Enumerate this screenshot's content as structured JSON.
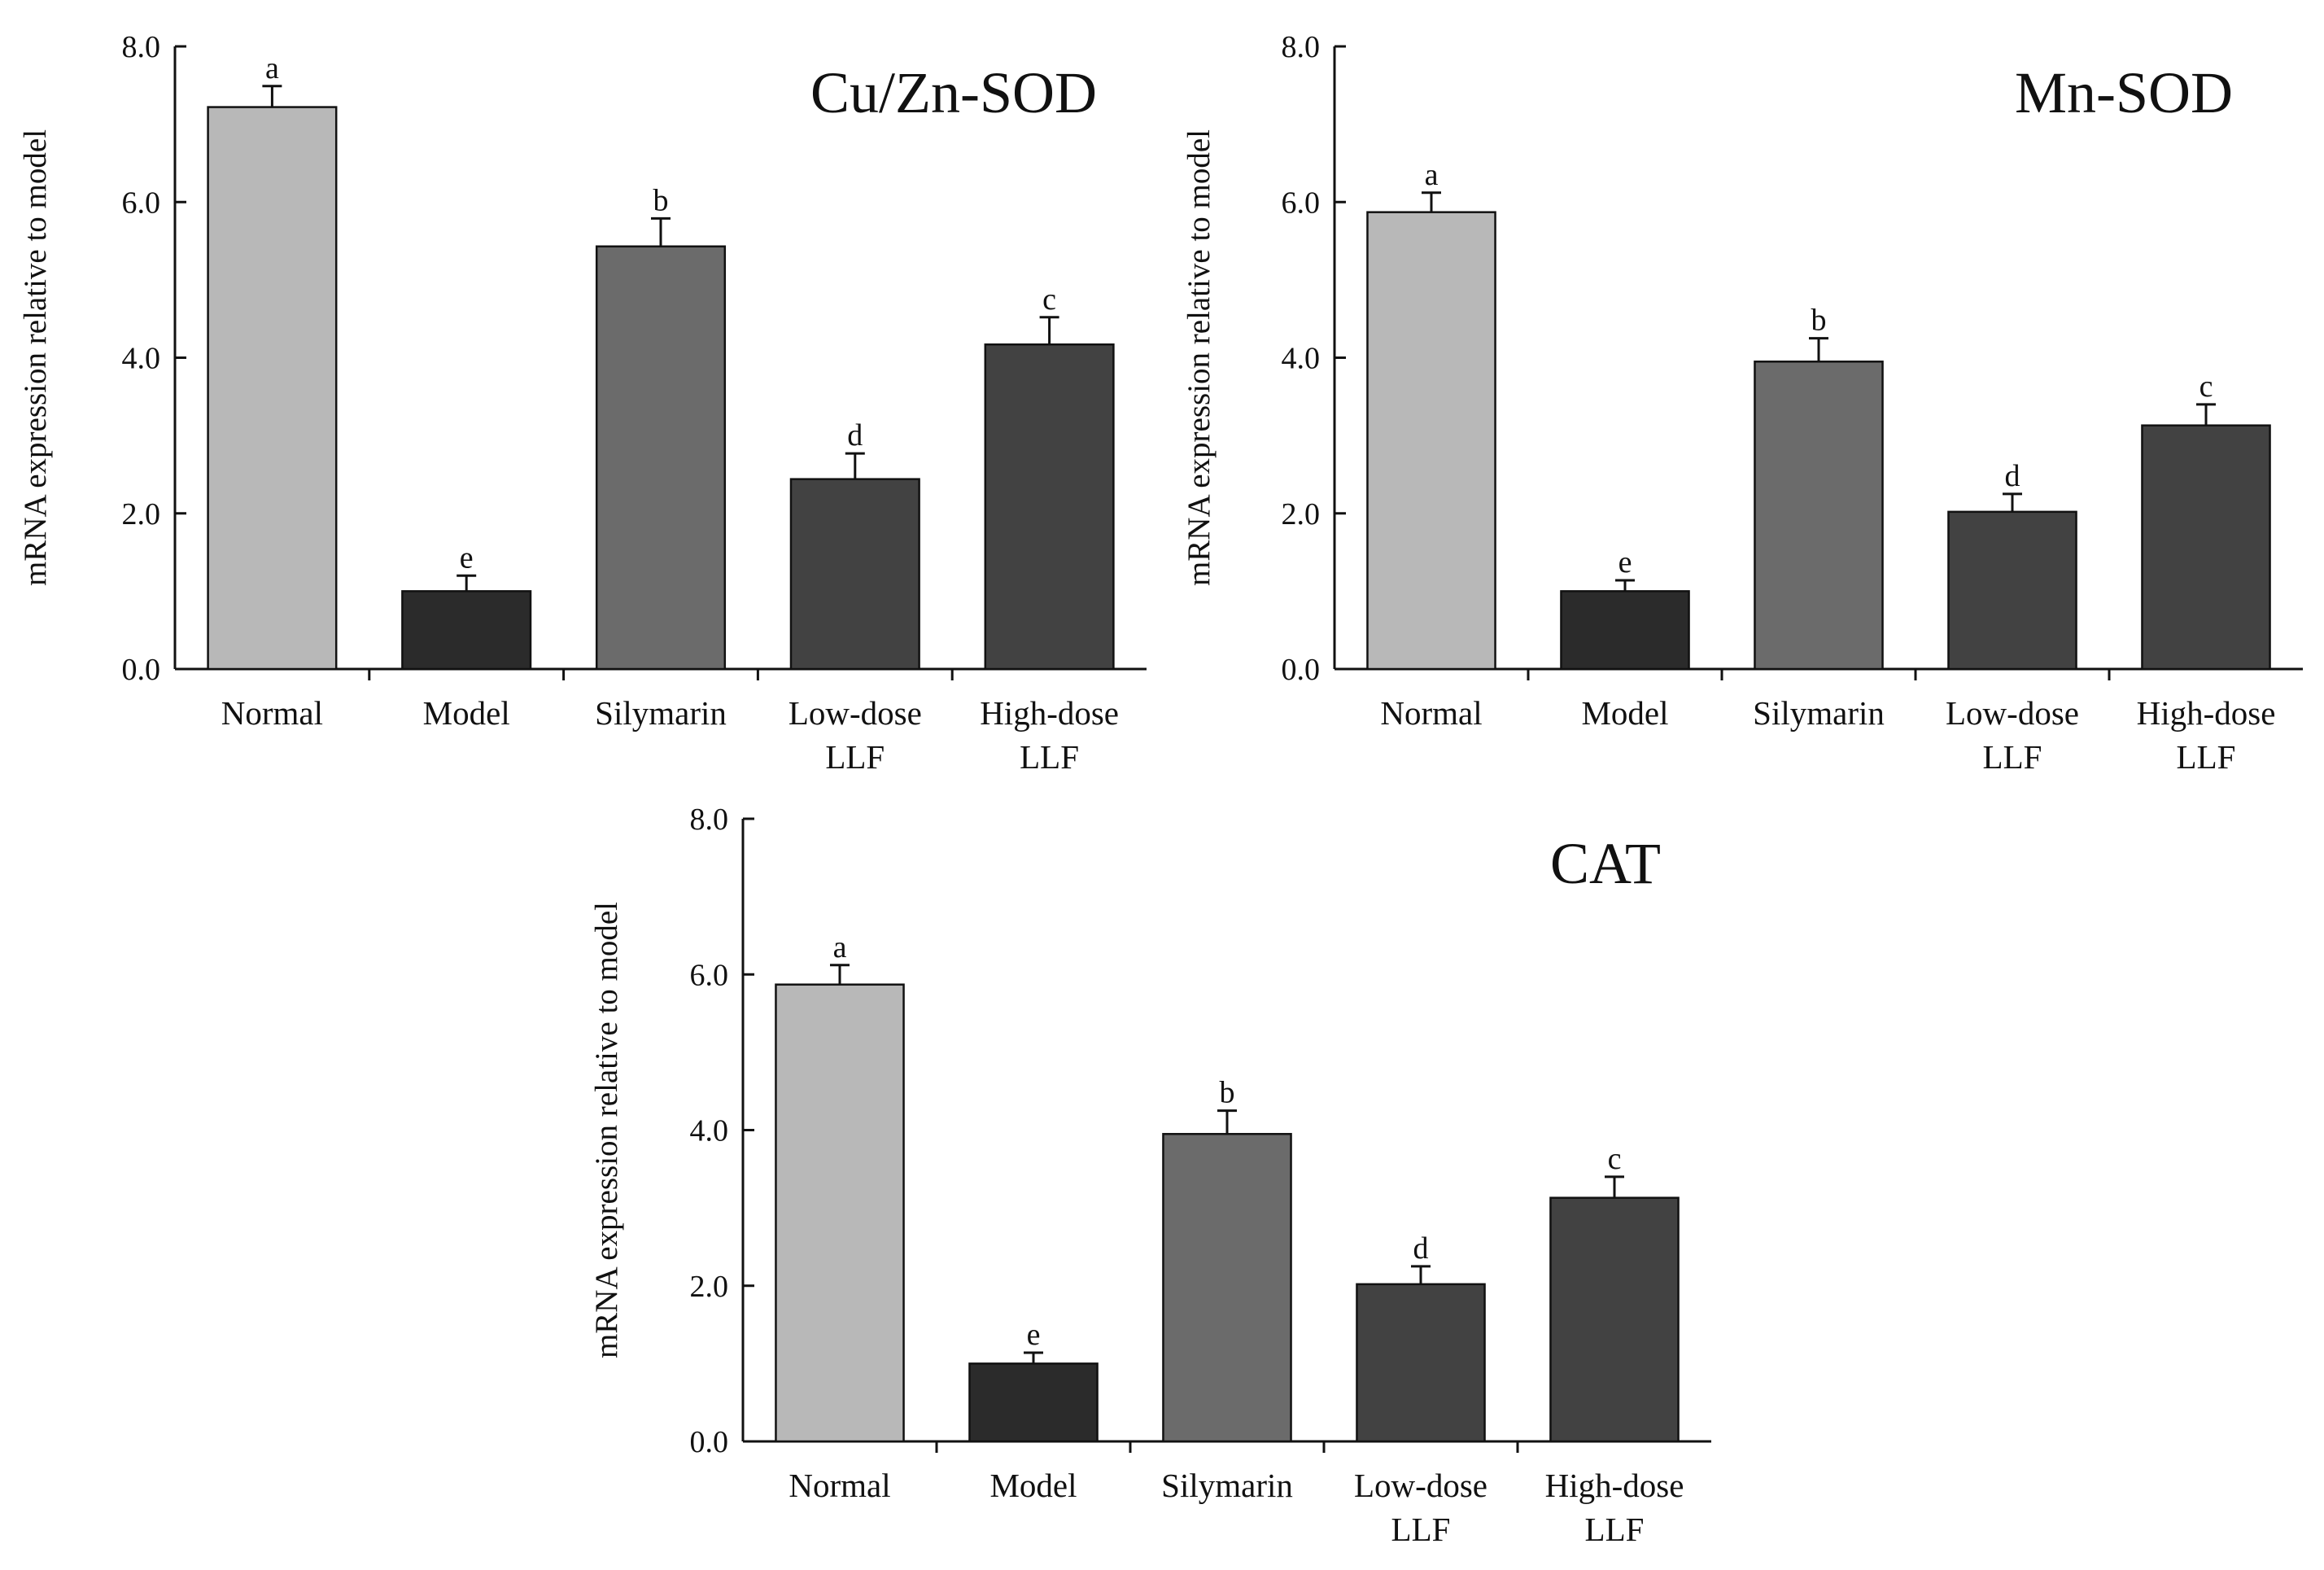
{
  "chart_data": [
    {
      "type": "bar",
      "title": "Cu/Zn-SOD",
      "ylabel": "mRNA expression relative to model",
      "xlabel": "",
      "ylim": [
        0,
        8
      ],
      "yticks": [
        "0.0",
        "2.0",
        "4.0",
        "6.0",
        "8.0"
      ],
      "categories": [
        [
          "Normal"
        ],
        [
          "Model"
        ],
        [
          "Silymarin"
        ],
        [
          "Low-dose",
          "LLF"
        ],
        [
          "High-dose",
          "LLF"
        ]
      ],
      "values": [
        7.22,
        1.0,
        5.43,
        2.44,
        4.17
      ],
      "errors": [
        0.27,
        0.2,
        0.36,
        0.33,
        0.35
      ],
      "significance": [
        "a",
        "e",
        "b",
        "d",
        "c"
      ],
      "colors": [
        "#b8b8b8",
        "#2b2b2b",
        "#6b6b6b",
        "#424242",
        "#424242"
      ]
    },
    {
      "type": "bar",
      "title": "Mn-SOD",
      "ylabel": "mRNA expression relative to model",
      "xlabel": "",
      "ylim": [
        0,
        8
      ],
      "yticks": [
        "0.0",
        "2.0",
        "4.0",
        "6.0",
        "8.0"
      ],
      "categories": [
        [
          "Normal"
        ],
        [
          "Model"
        ],
        [
          "Silymarin"
        ],
        [
          "Low-dose",
          "LLF"
        ],
        [
          "High-dose",
          "LLF"
        ]
      ],
      "values": [
        5.87,
        1.0,
        3.95,
        2.02,
        3.13
      ],
      "errors": [
        0.25,
        0.14,
        0.3,
        0.23,
        0.27
      ],
      "significance": [
        "a",
        "e",
        "b",
        "d",
        "c"
      ],
      "colors": [
        "#b8b8b8",
        "#2b2b2b",
        "#6b6b6b",
        "#424242",
        "#424242"
      ]
    },
    {
      "type": "bar",
      "title": "CAT",
      "ylabel": "mRNA expression relative to model",
      "xlabel": "",
      "ylim": [
        0,
        8
      ],
      "yticks": [
        "0.0",
        "2.0",
        "4.0",
        "6.0",
        "8.0"
      ],
      "categories": [
        [
          "Normal"
        ],
        [
          "Model"
        ],
        [
          "Silymarin"
        ],
        [
          "Low-dose",
          "LLF"
        ],
        [
          "High-dose",
          "LLF"
        ]
      ],
      "values": [
        5.87,
        1.0,
        3.95,
        2.02,
        3.13
      ],
      "errors": [
        0.25,
        0.14,
        0.3,
        0.23,
        0.27
      ],
      "significance": [
        "a",
        "e",
        "b",
        "d",
        "c"
      ],
      "colors": [
        "#b8b8b8",
        "#2b2b2b",
        "#6b6b6b",
        "#424242",
        "#424242"
      ]
    }
  ]
}
